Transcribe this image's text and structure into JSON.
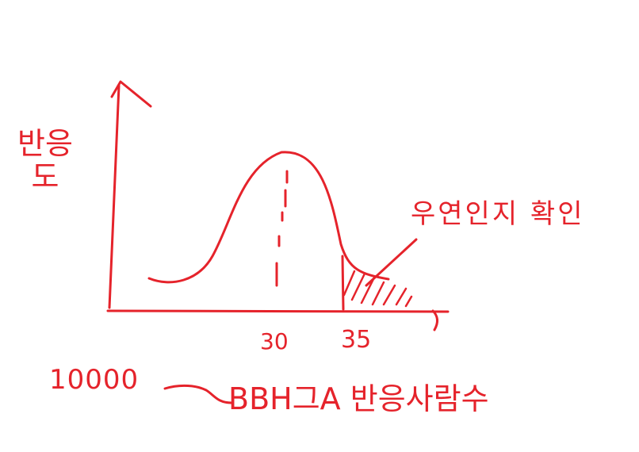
{
  "ink_color": "#e5232b",
  "y_axis_label": "반응\n도",
  "tick_30": "30",
  "tick_35": "35",
  "annotation": "우연인지 확인",
  "total_count": "10000",
  "bottom_text": "BBH그A 반응사람수"
}
